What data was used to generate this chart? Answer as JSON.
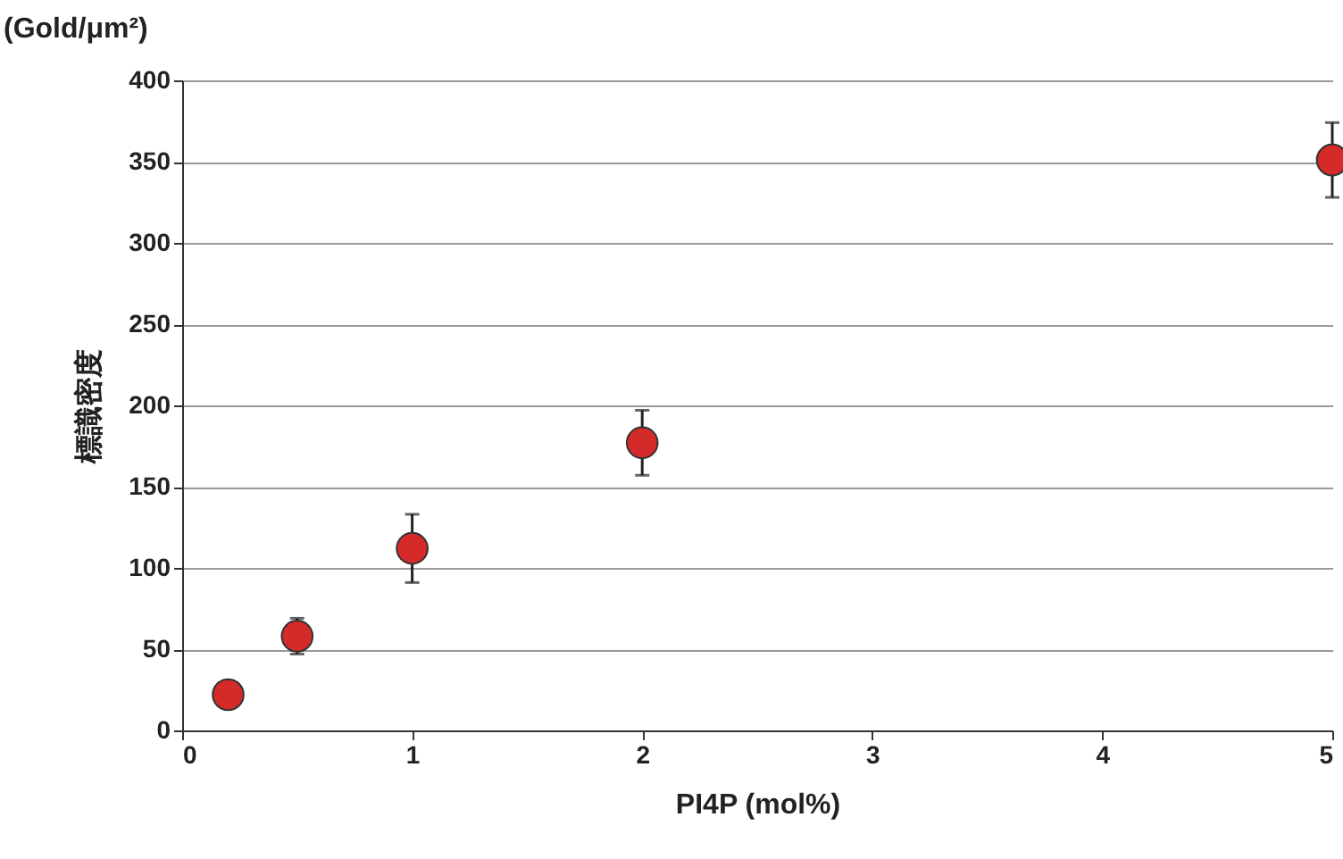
{
  "chart_data": {
    "type": "scatter",
    "xlabel": "PI4P (mol%)",
    "ylabel": "標識密度",
    "annotations": [
      "(Gold/μm²)"
    ],
    "x": [
      0.2,
      0.5,
      1,
      2,
      5
    ],
    "values": [
      22,
      58,
      112,
      177,
      351
    ],
    "errors": [
      null,
      11,
      21,
      20,
      23
    ],
    "color": "#d42a2a",
    "marker": "circle",
    "xlim": [
      0,
      5
    ],
    "xticks": [
      0,
      1,
      2,
      3,
      4,
      5
    ],
    "ylim": [
      0,
      400
    ],
    "yticks": [
      0,
      50,
      100,
      150,
      200,
      250,
      300,
      350,
      400
    ],
    "grid": "y"
  }
}
